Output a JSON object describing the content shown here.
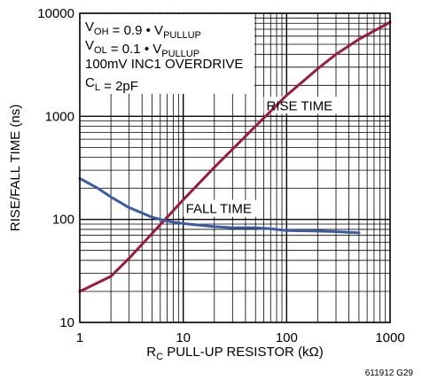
{
  "chart_data": {
    "type": "line",
    "x_scale": "log",
    "y_scale": "log",
    "xlim": [
      1,
      1000
    ],
    "ylim": [
      10,
      10000
    ],
    "grid": true,
    "x_ticks": [
      "1",
      "10",
      "100",
      "1000"
    ],
    "y_ticks": [
      "10",
      "100",
      "1000",
      "10000"
    ],
    "xlabel": {
      "pre": "R",
      "sub": "C",
      "post": " PULL-UP RESISTOR (kΩ)"
    },
    "ylabel": "RISE/FALL TIME (ns)",
    "figure_id": "611912 G29",
    "annotations": [
      {
        "parts": [
          {
            "t": "V"
          },
          {
            "t": "OH",
            "sub": true
          },
          {
            "t": " = 0.9 • V"
          },
          {
            "t": "PULLUP",
            "sub": true
          }
        ]
      },
      {
        "parts": [
          {
            "t": "V"
          },
          {
            "t": "OL",
            "sub": true
          },
          {
            "t": " = 0.1 • V"
          },
          {
            "t": "PULLUP",
            "sub": true
          }
        ]
      },
      {
        "parts": [
          {
            "t": "100mV INC1 OVERDRIVE"
          }
        ]
      },
      {
        "parts": [
          {
            "t": "C"
          },
          {
            "t": "L",
            "sub": true
          },
          {
            "t": " = 2pF"
          }
        ]
      }
    ],
    "series": [
      {
        "name": "RISE TIME",
        "color": "#9b1b3a",
        "label_at": [
          60,
          1000
        ],
        "x": [
          1,
          2,
          3,
          5,
          7,
          10,
          20,
          30,
          50,
          70,
          100,
          200,
          300,
          500,
          1000
        ],
        "y": [
          20,
          28,
          42,
          73,
          105,
          155,
          320,
          480,
          800,
          1120,
          1600,
          2900,
          4000,
          5600,
          8200
        ]
      },
      {
        "name": "FALL TIME",
        "color": "#3a5ba8",
        "label_at": [
          10,
          100
        ],
        "x": [
          1,
          1.5,
          2,
          3,
          5,
          7,
          10,
          20,
          30,
          50,
          70,
          100,
          200,
          300,
          500
        ],
        "y": [
          250,
          200,
          165,
          130,
          105,
          96,
          91,
          85,
          83,
          83,
          81,
          78,
          77,
          76,
          74
        ]
      }
    ]
  }
}
